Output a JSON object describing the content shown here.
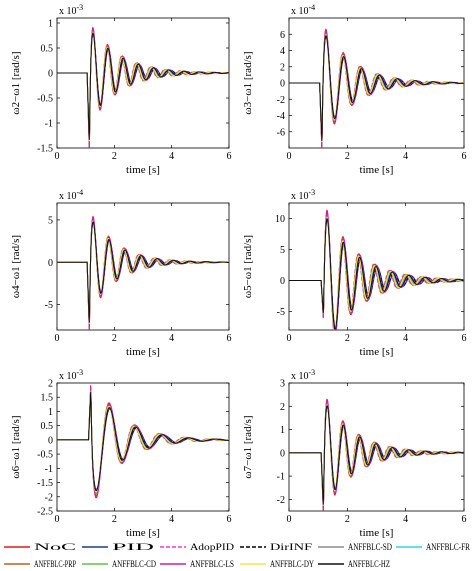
{
  "chart_data": [
    {
      "type": "line",
      "ylabel": "ω2−ω1 [rad/s]",
      "xlabel": "time [s]",
      "exponent": "x 10^-3",
      "xlim": [
        0,
        6
      ],
      "ylim": [
        -1.5,
        1.1
      ],
      "xticks": [
        "0",
        "2",
        "4",
        "6"
      ],
      "yticks": [
        "-1.5",
        "-1",
        "-0.5",
        "0",
        "0.5",
        "1"
      ],
      "ytick_values": [
        -1.5,
        -1,
        -0.5,
        0,
        0.5,
        1
      ],
      "wave": {
        "t0": 1.05,
        "first": -1.5,
        "peak": 1.0,
        "period": 0.52,
        "decay": 1.0
      }
    },
    {
      "type": "line",
      "ylabel": "ω3−ω1 [rad/s]",
      "xlabel": "time [s]",
      "exponent": "x 10^-4",
      "xlim": [
        0,
        6
      ],
      "ylim": [
        -8,
        8
      ],
      "xticks": [
        "0",
        "2",
        "4",
        "6"
      ],
      "yticks": [
        "-6",
        "-4",
        "-2",
        "0",
        "2",
        "4",
        "6"
      ],
      "ytick_values": [
        -6,
        -4,
        -2,
        0,
        2,
        4,
        6
      ],
      "wave": {
        "t0": 1.05,
        "first": -8,
        "peak": 7.2,
        "period": 0.6,
        "decay": 1.0
      }
    },
    {
      "type": "line",
      "ylabel": "ω4−ω1 [rad/s]",
      "xlabel": "time [s]",
      "exponent": "x 10^-4",
      "xlim": [
        0,
        6
      ],
      "ylim": [
        -8,
        7
      ],
      "xticks": [
        "0",
        "2",
        "4",
        "6"
      ],
      "yticks": [
        "-5",
        "0",
        "5"
      ],
      "ytick_values": [
        -5,
        0,
        5
      ],
      "wave": {
        "t0": 1.05,
        "first": -8,
        "peak": 6.0,
        "period": 0.55,
        "decay": 1.1
      }
    },
    {
      "type": "line",
      "ylabel": "ω5−ω1 [rad/s]",
      "xlabel": "time [s]",
      "exponent": "x 10^-3",
      "xlim": [
        0,
        6
      ],
      "ylim": [
        -8,
        12.5
      ],
      "xticks": [
        "0",
        "2",
        "4",
        "6"
      ],
      "yticks": [
        "-5",
        "0",
        "5",
        "10"
      ],
      "ytick_values": [
        -5,
        0,
        5,
        10
      ],
      "wave": {
        "t0": 1.1,
        "first": -6,
        "peak": 12,
        "period": 0.55,
        "decay": 0.9
      }
    },
    {
      "type": "line",
      "ylabel": "ω6−ω1 [rad/s]",
      "xlabel": "time [s]",
      "exponent": "x 10^-3",
      "xlim": [
        0,
        6
      ],
      "ylim": [
        -2.5,
        2
      ],
      "xticks": [
        "0",
        "2",
        "4",
        "6"
      ],
      "yticks": [
        "-2.5",
        "-2",
        "-1.5",
        "-1",
        "-0.5",
        "0",
        "0.5",
        "1",
        "1.5",
        "2"
      ],
      "ytick_values": [
        -2.5,
        -2,
        -1.5,
        -1,
        -0.5,
        0,
        0.5,
        1,
        1.5,
        2
      ],
      "wave": {
        "t0": 1.1,
        "first": 1.9,
        "peak": -2.3,
        "period": 0.9,
        "decay": 1.0
      }
    },
    {
      "type": "line",
      "ylabel": "ω7−ω1 [rad/s]",
      "xlabel": "time [s]",
      "exponent": "x 10^-3",
      "xlim": [
        0,
        6
      ],
      "ylim": [
        -2.5,
        3
      ],
      "xticks": [
        "0",
        "2",
        "4",
        "6"
      ],
      "yticks": [
        "-2",
        "-1",
        "0",
        "1",
        "2",
        "3"
      ],
      "ytick_values": [
        -2,
        -1,
        0,
        1,
        2,
        3
      ],
      "wave": {
        "t0": 1.1,
        "first": -2.5,
        "peak": 2.5,
        "period": 0.55,
        "decay": 1.0
      }
    }
  ],
  "series": [
    {
      "name": "NoC",
      "color": "#e41a1c",
      "dash": "none"
    },
    {
      "name": "PID",
      "color": "#1f3a93",
      "dash": "none"
    },
    {
      "name": "AdopPID",
      "color": "#e83fd0",
      "dash": "dashed"
    },
    {
      "name": "DirINF",
      "color": "#000000",
      "dash": "dashed"
    },
    {
      "name": "ANFFBLC-SD",
      "color": "#8c8c8c",
      "dash": "none"
    },
    {
      "name": "ANFFBLC-FR",
      "color": "#2fd6e6",
      "dash": "none"
    },
    {
      "name": "ANFFBLC-PRP",
      "color": "#b5651d",
      "dash": "none"
    },
    {
      "name": "ANFFBLC-CD",
      "color": "#62c24b",
      "dash": "none"
    },
    {
      "name": "ANFFBLC-LS",
      "color": "#c020c0",
      "dash": "none"
    },
    {
      "name": "ANFFBLC-DY",
      "color": "#f2e54a",
      "dash": "none"
    },
    {
      "name": "ANFFBLC-HZ",
      "color": "#111111",
      "dash": "none"
    }
  ]
}
